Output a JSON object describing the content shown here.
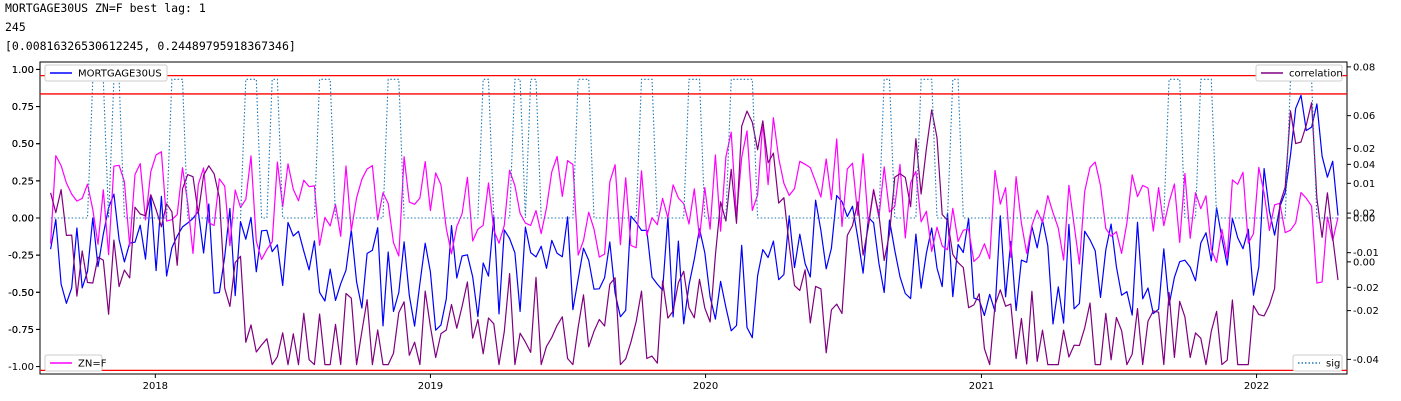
{
  "output": {
    "line1": "MORTGAGE30US ZN=F best lag: 1",
    "line2": "245",
    "line3": "[0.00816326530612245, 0.24489795918367346]"
  },
  "chart_data": {
    "type": "line",
    "x_range": [
      "2017-08-01",
      "2022-05-01"
    ],
    "x_tick_labels": [
      "2018",
      "2019",
      "2020",
      "2021",
      "2022"
    ],
    "axes": [
      {
        "id": "ax1",
        "side": "left",
        "ylim": [
          -1.05,
          1.05
        ],
        "tick_labels": [
          "1.00",
          "0.75",
          "0.50",
          "0.25",
          "0.00",
          "-0.25",
          "-0.50",
          "-0.75"
        ],
        "tick_values": [
          1.0,
          0.75,
          0.5,
          0.25,
          0.0,
          -0.25,
          -0.5,
          -0.75
        ]
      },
      {
        "id": "ax2",
        "side": "left",
        "ylim": [
          -1.05,
          1.05
        ],
        "tick_labels": [
          "1.00",
          "0.75",
          "0.50",
          "0.25",
          "0.00",
          "-0.25",
          "-0.50",
          "-0.75",
          "-1.00"
        ],
        "tick_values": [
          1.0,
          0.75,
          0.5,
          0.25,
          0.0,
          -0.25,
          -0.5,
          -0.75,
          -1.0
        ]
      },
      {
        "id": "ax3",
        "side": "right",
        "ylim": [
          -0.046,
          0.082
        ],
        "tick_labels": [
          "0.08",
          "0.06",
          "0.04",
          "0.02",
          "0.00",
          "-0.02",
          "-0.04"
        ],
        "tick_values": [
          0.08,
          0.06,
          0.04,
          0.02,
          0.0,
          -0.02,
          -0.04
        ]
      },
      {
        "id": "ax4",
        "side": "right",
        "ylim": [
          -0.045,
          0.045
        ],
        "tick_labels": [
          "0.02",
          "0.01",
          "0.00",
          "-0.01",
          "-0.02"
        ],
        "tick_values": [
          0.02,
          0.01,
          0.0,
          -0.01,
          -0.02
        ]
      }
    ],
    "hlines": [
      {
        "axis": "ax3",
        "y": 0.0764,
        "color": "#ff0000"
      },
      {
        "axis": "ax3",
        "y": 0.0689,
        "color": "#ff0000"
      },
      {
        "axis": "ax3",
        "y": -0.0445,
        "color": "#ff0000"
      }
    ],
    "legends": [
      {
        "label": "MORTGAGE30US",
        "color": "#0000ff",
        "style": "solid",
        "position": "top-left"
      },
      {
        "label": "ZN=F",
        "color": "#ff00ff",
        "style": "solid",
        "position": "bottom-left"
      },
      {
        "label": "correlation",
        "color": "#800080",
        "style": "solid",
        "position": "top-right"
      },
      {
        "label": "sig",
        "color": "#1f77b4",
        "style": "dotted",
        "position": "bottom-right"
      }
    ],
    "series": [
      {
        "name": "MORTGAGE30US",
        "axis": "ax1",
        "color": "#0000ff",
        "style": "solid",
        "seed": 11,
        "keypoints": [
          [
            "2017-08-15",
            -0.32
          ],
          [
            "2018-01-15",
            -0.05
          ],
          [
            "2018-06-01",
            -0.3
          ],
          [
            "2019-01-01",
            -0.42
          ],
          [
            "2019-06-01",
            -0.3
          ],
          [
            "2019-12-01",
            -0.35
          ],
          [
            "2020-03-01",
            -0.5
          ],
          [
            "2020-06-01",
            -0.1
          ],
          [
            "2020-12-01",
            -0.3
          ],
          [
            "2021-06-01",
            -0.4
          ],
          [
            "2022-01-01",
            -0.2
          ],
          [
            "2022-03-01",
            0.9
          ],
          [
            "2022-04-20",
            -0.1
          ]
        ]
      },
      {
        "name": "ZN=F",
        "axis": "ax2",
        "color": "#ff00ff",
        "style": "solid",
        "seed": 23,
        "keypoints": [
          [
            "2017-08-15",
            0.1
          ],
          [
            "2018-01-01",
            0.1
          ],
          [
            "2019-01-01",
            0.05
          ],
          [
            "2020-01-01",
            0.05
          ],
          [
            "2020-03-01",
            0.4
          ],
          [
            "2021-01-01",
            0.05
          ],
          [
            "2022-01-01",
            0.05
          ],
          [
            "2022-04-20",
            -0.3
          ]
        ]
      },
      {
        "name": "correlation",
        "axis": "ax3",
        "color": "#800080",
        "style": "solid",
        "seed": 37,
        "keypoints": [
          [
            "2017-08-15",
            0.02
          ],
          [
            "2017-10-01",
            -0.02
          ],
          [
            "2018-03-01",
            0.03
          ],
          [
            "2018-06-01",
            -0.04
          ],
          [
            "2019-01-01",
            -0.03
          ],
          [
            "2019-06-01",
            -0.025
          ],
          [
            "2020-01-01",
            -0.02
          ],
          [
            "2020-03-01",
            0.06
          ],
          [
            "2020-06-01",
            -0.02
          ],
          [
            "2020-11-01",
            0.05
          ],
          [
            "2021-01-01",
            -0.03
          ],
          [
            "2021-06-01",
            -0.03
          ],
          [
            "2022-01-01",
            -0.035
          ],
          [
            "2022-03-01",
            0.07
          ],
          [
            "2022-04-20",
            -0.02
          ]
        ]
      },
      {
        "name": "sig",
        "axis": "ax4",
        "color": "#1f77b4",
        "style": "dotted",
        "type": "step",
        "low": 0.0,
        "high": 0.04,
        "on_intervals": [
          [
            "2017-10-10",
            "2017-10-25"
          ],
          [
            "2017-11-05",
            "2017-11-20"
          ],
          [
            "2018-01-20",
            "2018-02-10"
          ],
          [
            "2018-04-25",
            "2018-05-20"
          ],
          [
            "2018-06-01",
            "2018-06-15"
          ],
          [
            "2018-08-01",
            "2018-08-25"
          ],
          [
            "2018-11-05",
            "2018-11-20"
          ],
          [
            "2019-03-10",
            "2019-03-20"
          ],
          [
            "2019-04-20",
            "2019-04-30"
          ],
          [
            "2019-05-10",
            "2019-05-25"
          ],
          [
            "2019-07-10",
            "2019-08-05"
          ],
          [
            "2019-10-05",
            "2019-10-25"
          ],
          [
            "2019-12-05",
            "2019-12-25"
          ],
          [
            "2020-02-01",
            "2020-03-05"
          ],
          [
            "2020-08-20",
            "2020-09-05"
          ],
          [
            "2020-10-10",
            "2020-10-30"
          ],
          [
            "2020-11-20",
            "2020-12-05"
          ],
          [
            "2021-09-05",
            "2021-09-25"
          ],
          [
            "2021-10-15",
            "2021-11-05"
          ],
          [
            "2022-02-10",
            "2022-03-15"
          ]
        ]
      }
    ]
  }
}
